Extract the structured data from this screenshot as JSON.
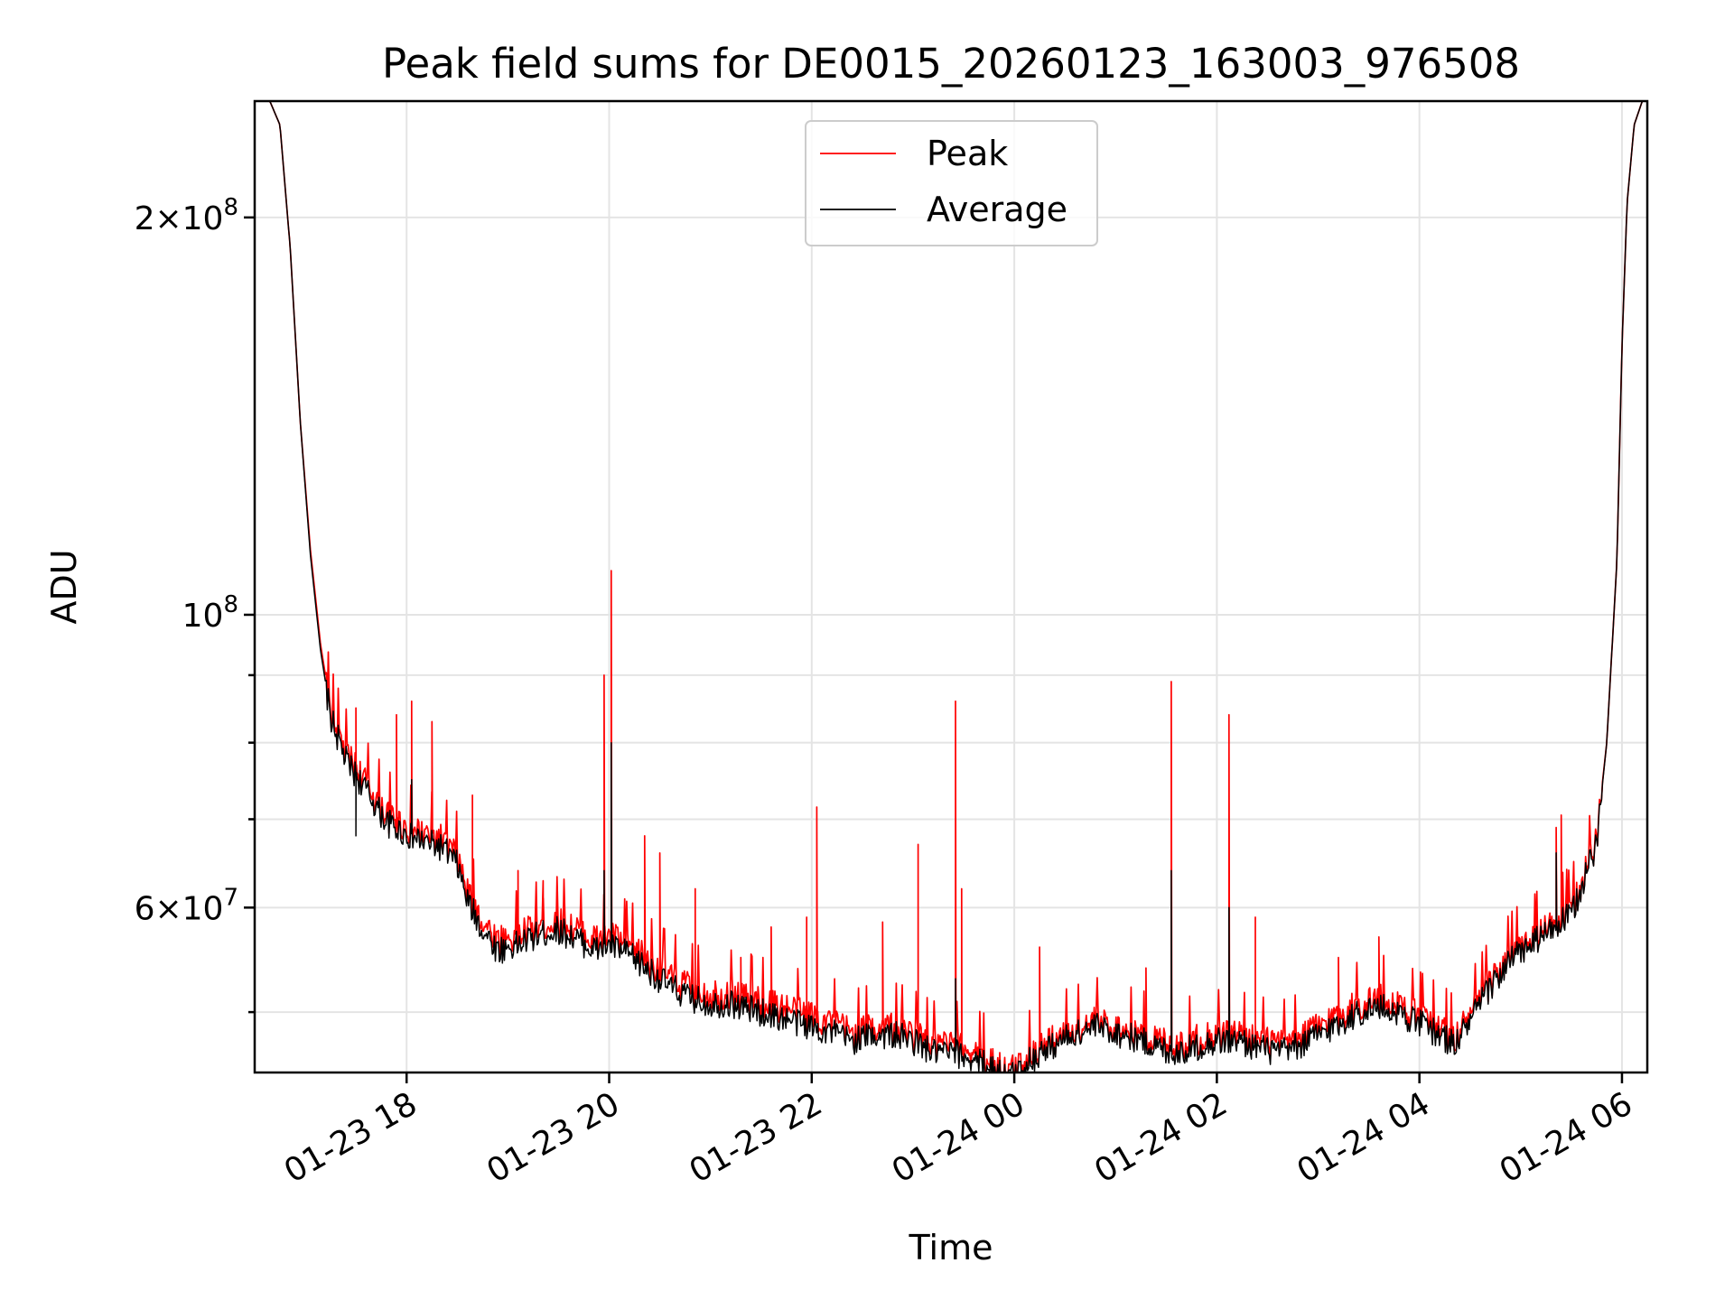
{
  "chart_data": {
    "type": "line",
    "title": "Peak field sums for DE0015_20260123_163003_976508",
    "xlabel": "Time",
    "ylabel": "ADU",
    "yscale": "log",
    "ylim": [
      45000000,
      245000000
    ],
    "xlim_hours": [
      16.5,
      30.25
    ],
    "grid": true,
    "legend_position": "upper center",
    "x_ticks": [
      {
        "hour": 18,
        "label": "01-23 18"
      },
      {
        "hour": 20,
        "label": "01-23 20"
      },
      {
        "hour": 22,
        "label": "01-23 22"
      },
      {
        "hour": 24,
        "label": "01-24 00"
      },
      {
        "hour": 26,
        "label": "01-24 02"
      },
      {
        "hour": 28,
        "label": "01-24 04"
      },
      {
        "hour": 30,
        "label": "01-24 06"
      }
    ],
    "y_major_ticks": [
      {
        "value": 60000000,
        "mantissa": "6",
        "exp": "7",
        "prefix": "6×10"
      },
      {
        "value": 100000000,
        "mantissa": "",
        "exp": "8",
        "prefix": "10"
      },
      {
        "value": 200000000,
        "mantissa": "2",
        "exp": "8",
        "prefix": "2×10"
      }
    ],
    "y_minor_ticks": [
      50000000,
      70000000,
      80000000,
      90000000
    ],
    "series": [
      {
        "name": "Peak",
        "color": "#ff0000",
        "points": [
          [
            16.5,
            245000000
          ],
          [
            16.65,
            245000000
          ],
          [
            16.75,
            235000000
          ],
          [
            16.85,
            190000000
          ],
          [
            16.95,
            140000000
          ],
          [
            17.05,
            112000000
          ],
          [
            17.15,
            95000000
          ],
          [
            17.25,
            85000000
          ],
          [
            17.4,
            79000000
          ],
          [
            17.6,
            75000000
          ],
          [
            17.8,
            71000000
          ],
          [
            18.0,
            69500000
          ],
          [
            18.2,
            68500000
          ],
          [
            18.35,
            68000000
          ],
          [
            18.5,
            66000000
          ],
          [
            18.6,
            62000000
          ],
          [
            18.75,
            59000000
          ],
          [
            18.9,
            57000000
          ],
          [
            19.1,
            57500000
          ],
          [
            19.3,
            58500000
          ],
          [
            19.5,
            59000000
          ],
          [
            19.7,
            58000000
          ],
          [
            19.85,
            57000000
          ],
          [
            20.0,
            57500000
          ],
          [
            20.2,
            56500000
          ],
          [
            20.4,
            55000000
          ],
          [
            20.6,
            53500000
          ],
          [
            20.8,
            52500000
          ],
          [
            21.0,
            52000000
          ],
          [
            21.2,
            52000000
          ],
          [
            21.4,
            51500000
          ],
          [
            21.6,
            51000000
          ],
          [
            21.8,
            50500000
          ],
          [
            22.0,
            50000000
          ],
          [
            22.2,
            49500000
          ],
          [
            22.4,
            48500000
          ],
          [
            22.6,
            49000000
          ],
          [
            22.8,
            49000000
          ],
          [
            23.0,
            48500000
          ],
          [
            23.2,
            47500000
          ],
          [
            23.4,
            47500000
          ],
          [
            23.6,
            47000000
          ],
          [
            23.8,
            46000000
          ],
          [
            23.95,
            45200000
          ],
          [
            24.1,
            46500000
          ],
          [
            24.3,
            47500000
          ],
          [
            24.5,
            48500000
          ],
          [
            24.8,
            49500000
          ],
          [
            25.0,
            49000000
          ],
          [
            25.2,
            48500000
          ],
          [
            25.4,
            48000000
          ],
          [
            25.6,
            47500000
          ],
          [
            25.8,
            48000000
          ],
          [
            26.0,
            48500000
          ],
          [
            26.2,
            48500000
          ],
          [
            26.4,
            48000000
          ],
          [
            26.6,
            47500000
          ],
          [
            26.8,
            48000000
          ],
          [
            27.0,
            49000000
          ],
          [
            27.2,
            50000000
          ],
          [
            27.4,
            51000000
          ],
          [
            27.6,
            51500000
          ],
          [
            27.8,
            51000000
          ],
          [
            28.0,
            50000000
          ],
          [
            28.2,
            49000000
          ],
          [
            28.35,
            48000000
          ],
          [
            28.5,
            50000000
          ],
          [
            28.7,
            53000000
          ],
          [
            28.9,
            55500000
          ],
          [
            29.1,
            57000000
          ],
          [
            29.3,
            58500000
          ],
          [
            29.5,
            60000000
          ],
          [
            29.6,
            63000000
          ],
          [
            29.75,
            68000000
          ],
          [
            29.85,
            80000000
          ],
          [
            29.95,
            110000000
          ],
          [
            30.0,
            160000000
          ],
          [
            30.05,
            205000000
          ],
          [
            30.12,
            235000000
          ],
          [
            30.2,
            245000000
          ],
          [
            30.25,
            245000000
          ]
        ],
        "spikes": [
          [
            17.5,
            85000000
          ],
          [
            17.9,
            84000000
          ],
          [
            18.05,
            86000000
          ],
          [
            18.25,
            83000000
          ],
          [
            18.65,
            73000000
          ],
          [
            19.1,
            64000000
          ],
          [
            19.35,
            61000000
          ],
          [
            19.95,
            90000000
          ],
          [
            20.02,
            108000000
          ],
          [
            20.35,
            68000000
          ],
          [
            20.5,
            66000000
          ],
          [
            20.85,
            62000000
          ],
          [
            21.3,
            55000000
          ],
          [
            21.6,
            58000000
          ],
          [
            21.95,
            59000000
          ],
          [
            22.05,
            71500000
          ],
          [
            22.7,
            58500000
          ],
          [
            23.05,
            67000000
          ],
          [
            23.42,
            86000000
          ],
          [
            23.48,
            62000000
          ],
          [
            24.25,
            56000000
          ],
          [
            25.3,
            54000000
          ],
          [
            25.55,
            89000000
          ],
          [
            26.12,
            84000000
          ],
          [
            26.38,
            59000000
          ],
          [
            27.2,
            55000000
          ],
          [
            27.6,
            57000000
          ],
          [
            29.35,
            69000000
          ],
          [
            29.4,
            70500000
          ]
        ]
      },
      {
        "name": "Average",
        "color": "#000000",
        "points": [
          [
            16.5,
            245000000
          ],
          [
            16.65,
            245000000
          ],
          [
            16.75,
            235000000
          ],
          [
            16.85,
            190000000
          ],
          [
            16.95,
            140000000
          ],
          [
            17.05,
            111000000
          ],
          [
            17.15,
            94000000
          ],
          [
            17.25,
            84000000
          ],
          [
            17.4,
            78000000
          ],
          [
            17.6,
            74000000
          ],
          [
            17.8,
            70000000
          ],
          [
            18.0,
            68500000
          ],
          [
            18.2,
            67500000
          ],
          [
            18.35,
            67000000
          ],
          [
            18.5,
            65000000
          ],
          [
            18.6,
            61000000
          ],
          [
            18.75,
            58000000
          ],
          [
            18.9,
            56000000
          ],
          [
            19.1,
            56500000
          ],
          [
            19.3,
            57500000
          ],
          [
            19.5,
            58000000
          ],
          [
            19.7,
            57000000
          ],
          [
            19.85,
            56000000
          ],
          [
            20.0,
            56500000
          ],
          [
            20.2,
            55500000
          ],
          [
            20.4,
            54000000
          ],
          [
            20.6,
            52500000
          ],
          [
            20.8,
            51500000
          ],
          [
            21.0,
            51000000
          ],
          [
            21.2,
            51000000
          ],
          [
            21.4,
            50500000
          ],
          [
            21.6,
            50000000
          ],
          [
            21.8,
            49500000
          ],
          [
            22.0,
            49000000
          ],
          [
            22.2,
            48500000
          ],
          [
            22.4,
            47800000
          ],
          [
            22.6,
            48300000
          ],
          [
            22.8,
            48300000
          ],
          [
            23.0,
            47800000
          ],
          [
            23.2,
            46800000
          ],
          [
            23.4,
            46800000
          ],
          [
            23.6,
            46300000
          ],
          [
            23.8,
            45500000
          ],
          [
            23.95,
            44800000
          ],
          [
            24.1,
            45900000
          ],
          [
            24.3,
            47000000
          ],
          [
            24.5,
            48000000
          ],
          [
            24.8,
            49000000
          ],
          [
            25.0,
            48500000
          ],
          [
            25.2,
            48000000
          ],
          [
            25.4,
            47300000
          ],
          [
            25.6,
            46800000
          ],
          [
            25.8,
            47300000
          ],
          [
            26.0,
            47800000
          ],
          [
            26.2,
            47800000
          ],
          [
            26.4,
            47300000
          ],
          [
            26.6,
            46800000
          ],
          [
            26.8,
            47300000
          ],
          [
            27.0,
            48300000
          ],
          [
            27.2,
            49200000
          ],
          [
            27.4,
            50200000
          ],
          [
            27.6,
            50700000
          ],
          [
            27.8,
            50200000
          ],
          [
            28.0,
            49300000
          ],
          [
            28.2,
            48300000
          ],
          [
            28.35,
            47500000
          ],
          [
            28.5,
            49500000
          ],
          [
            28.7,
            52500000
          ],
          [
            28.9,
            55000000
          ],
          [
            29.1,
            56500000
          ],
          [
            29.3,
            58000000
          ],
          [
            29.5,
            59500000
          ],
          [
            29.6,
            62500000
          ],
          [
            29.75,
            67500000
          ],
          [
            29.85,
            80000000
          ],
          [
            29.95,
            110000000
          ],
          [
            30.0,
            160000000
          ],
          [
            30.05,
            205000000
          ],
          [
            30.12,
            235000000
          ],
          [
            30.2,
            245000000
          ],
          [
            30.25,
            245000000
          ]
        ],
        "spikes": [
          [
            20.02,
            80000000
          ],
          [
            19.95,
            64000000
          ],
          [
            23.42,
            53000000
          ],
          [
            25.55,
            64000000
          ],
          [
            26.12,
            60000000
          ],
          [
            29.35,
            66000000
          ],
          [
            17.5,
            68000000
          ],
          [
            18.05,
            75000000
          ]
        ]
      }
    ]
  }
}
